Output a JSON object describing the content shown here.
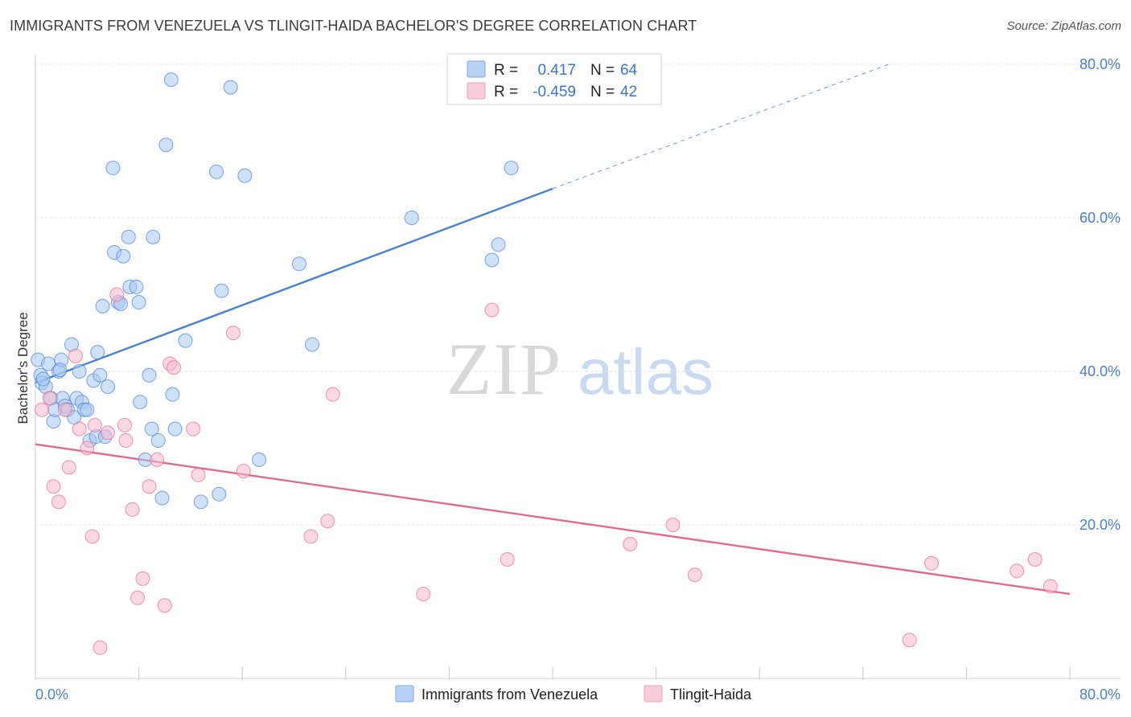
{
  "header": {
    "title": "IMMIGRANTS FROM VENEZUELA VS TLINGIT-HAIDA BACHELOR'S DEGREE CORRELATION CHART",
    "source": "Source: ZipAtlas.com"
  },
  "watermark": {
    "zip": "ZIP",
    "atlas": "atlas"
  },
  "legend": {
    "r_label": "R =",
    "n_label": "N =",
    "rows": [
      {
        "r": "0.417",
        "n": "64",
        "color": "#a8c8f0"
      },
      {
        "r": "-0.459",
        "n": "42",
        "color": "#f5b8cc"
      }
    ]
  },
  "chart_data": {
    "type": "scatter",
    "xlabel": "",
    "ylabel": "Bachelor's Degree",
    "xlim": [
      0,
      80
    ],
    "ylim": [
      0,
      80
    ],
    "x_tick_labels": [
      "0.0%",
      "80.0%"
    ],
    "y_ticks": [
      20,
      40,
      60,
      80
    ],
    "y_tick_labels": [
      "20.0%",
      "40.0%",
      "60.0%",
      "80.0%"
    ],
    "grid": true,
    "series": [
      {
        "name": "Immigrants from Venezuela",
        "color": "#4a80d8",
        "fill": "#a8c8f0",
        "trend": {
          "x0": 0,
          "y0": 38.5,
          "x1": 40,
          "y1": 63.8,
          "dash_to_x": 66,
          "dash_to_y": 80
        },
        "points": [
          [
            0.2,
            41.5
          ],
          [
            0.4,
            39.5
          ],
          [
            0.5,
            38.5
          ],
          [
            0.8,
            38.0
          ],
          [
            1.0,
            41.0
          ],
          [
            1.2,
            36.5
          ],
          [
            1.4,
            33.5
          ],
          [
            1.5,
            35.0
          ],
          [
            1.8,
            40.0
          ],
          [
            2.0,
            41.5
          ],
          [
            2.1,
            36.5
          ],
          [
            2.3,
            35.5
          ],
          [
            2.5,
            35.0
          ],
          [
            2.8,
            43.5
          ],
          [
            3.0,
            34.0
          ],
          [
            3.2,
            36.5
          ],
          [
            3.4,
            40.0
          ],
          [
            3.6,
            36.0
          ],
          [
            3.8,
            35.0
          ],
          [
            4.0,
            35.0
          ],
          [
            4.2,
            31.0
          ],
          [
            4.5,
            38.8
          ],
          [
            4.7,
            31.5
          ],
          [
            4.8,
            42.5
          ],
          [
            5.0,
            39.5
          ],
          [
            5.2,
            48.5
          ],
          [
            5.4,
            31.5
          ],
          [
            5.6,
            38.0
          ],
          [
            6.0,
            66.5
          ],
          [
            6.1,
            55.5
          ],
          [
            6.4,
            49.0
          ],
          [
            6.6,
            48.8
          ],
          [
            6.8,
            55.0
          ],
          [
            7.2,
            57.5
          ],
          [
            7.3,
            51.0
          ],
          [
            7.8,
            51.0
          ],
          [
            8.0,
            49.0
          ],
          [
            8.1,
            36.0
          ],
          [
            8.5,
            28.5
          ],
          [
            8.8,
            39.5
          ],
          [
            9.0,
            32.5
          ],
          [
            9.1,
            57.5
          ],
          [
            9.5,
            31.0
          ],
          [
            9.8,
            23.5
          ],
          [
            10.1,
            69.5
          ],
          [
            10.5,
            78.0
          ],
          [
            10.6,
            37.0
          ],
          [
            10.8,
            32.5
          ],
          [
            11.6,
            44.0
          ],
          [
            12.8,
            23.0
          ],
          [
            14.0,
            66.0
          ],
          [
            14.2,
            24.0
          ],
          [
            14.4,
            50.5
          ],
          [
            15.1,
            77.0
          ],
          [
            16.2,
            65.5
          ],
          [
            17.3,
            28.5
          ],
          [
            20.4,
            54.0
          ],
          [
            21.4,
            43.5
          ],
          [
            29.1,
            60.0
          ],
          [
            35.3,
            54.5
          ],
          [
            35.8,
            56.5
          ],
          [
            36.8,
            66.5
          ],
          [
            0.6,
            39.0
          ],
          [
            1.9,
            40.2
          ]
        ]
      },
      {
        "name": "Tlingit-Haida",
        "color": "#e06c96",
        "fill": "#f5b8cc",
        "trend": {
          "x0": 0,
          "y0": 30.5,
          "x1": 80,
          "y1": 11.0
        },
        "points": [
          [
            0.5,
            35.0
          ],
          [
            1.1,
            36.5
          ],
          [
            1.4,
            25.0
          ],
          [
            1.8,
            23.0
          ],
          [
            2.3,
            35.0
          ],
          [
            2.6,
            27.5
          ],
          [
            3.1,
            42.0
          ],
          [
            3.4,
            32.5
          ],
          [
            4.0,
            30.0
          ],
          [
            4.4,
            18.5
          ],
          [
            4.6,
            33.0
          ],
          [
            5.0,
            4.0
          ],
          [
            5.6,
            32.0
          ],
          [
            6.3,
            50.0
          ],
          [
            6.9,
            33.0
          ],
          [
            7.0,
            31.0
          ],
          [
            7.5,
            22.0
          ],
          [
            7.9,
            10.5
          ],
          [
            8.3,
            13.0
          ],
          [
            8.8,
            25.0
          ],
          [
            9.4,
            28.5
          ],
          [
            10.0,
            9.5
          ],
          [
            10.4,
            41.0
          ],
          [
            10.7,
            40.5
          ],
          [
            12.2,
            32.5
          ],
          [
            12.6,
            26.5
          ],
          [
            15.3,
            45.0
          ],
          [
            16.1,
            27.0
          ],
          [
            21.3,
            18.5
          ],
          [
            22.6,
            20.5
          ],
          [
            23.0,
            37.0
          ],
          [
            30.0,
            11.0
          ],
          [
            35.3,
            48.0
          ],
          [
            36.5,
            15.5
          ],
          [
            46.0,
            17.5
          ],
          [
            49.3,
            20.0
          ],
          [
            51.0,
            13.5
          ],
          [
            67.6,
            5.0
          ],
          [
            69.3,
            15.0
          ],
          [
            75.9,
            14.0
          ],
          [
            77.3,
            15.5
          ],
          [
            78.5,
            12.0
          ]
        ]
      }
    ]
  }
}
